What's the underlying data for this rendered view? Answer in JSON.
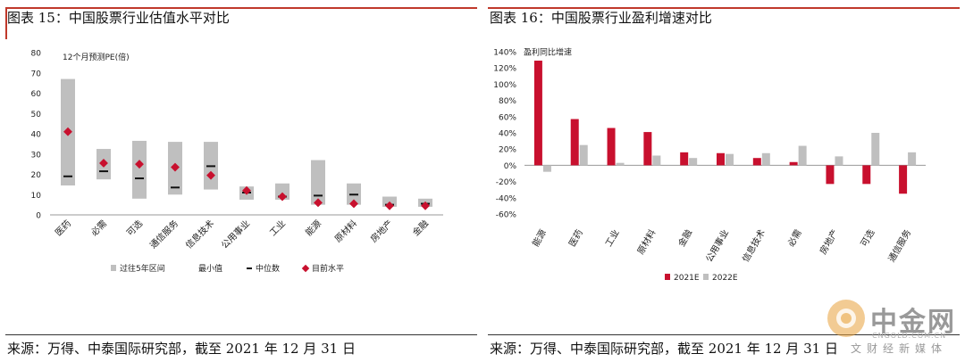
{
  "left": {
    "title": "图表 15：中国股票行业估值水平对比",
    "source": "来源：万得、中泰国际研究部，截至 2021 年 12 月 31 日"
  },
  "right": {
    "title": "图表 16：中国股票行业盈利增速对比",
    "source": "来源：万得、中泰国际研究部，截至 2021 年 12 月 31 日"
  },
  "watermark": {
    "cn": "中金网",
    "en": "CNGOLD.COM.CN",
    "sub": "文财经新媒体"
  },
  "colors": {
    "accent": "#c0392b",
    "red": "#c8102e",
    "gray": "#bfbfbf",
    "dark": "#111111"
  },
  "chart_data": [
    {
      "type": "box-range",
      "ylabel": "12个月预测PE(倍)",
      "ylim": [
        0,
        80
      ],
      "yticks": [
        "0",
        "10",
        "20",
        "30",
        "40",
        "50",
        "60",
        "70",
        "80"
      ],
      "categories": [
        "医药",
        "必需",
        "可选",
        "通信服务",
        "信息技术",
        "公用事业",
        "工业",
        "能源",
        "原材料",
        "房地产",
        "金融"
      ],
      "range_low": [
        14.5,
        17.5,
        8,
        10,
        12.5,
        7.5,
        7.5,
        5,
        5,
        4,
        4
      ],
      "range_high": [
        67,
        32.5,
        36.5,
        36,
        36,
        14,
        15.5,
        27,
        15.5,
        9,
        8
      ],
      "median": [
        19,
        21.5,
        18,
        13.5,
        24,
        11,
        9,
        9.5,
        10,
        5,
        5.5
      ],
      "current": [
        41,
        25.5,
        25,
        23.5,
        19.5,
        12,
        9,
        6,
        5.5,
        4.5,
        4.5
      ],
      "legend": [
        "过往5年区间",
        "最小值",
        "中位数",
        "目前水平"
      ],
      "legend_position": "bottom"
    },
    {
      "type": "bar",
      "ylabel": "盈利同比增速",
      "ylim": [
        -60,
        140
      ],
      "yticks": [
        "-60%",
        "-40%",
        "-20%",
        "0%",
        "20%",
        "40%",
        "60%",
        "80%",
        "100%",
        "120%",
        "140%"
      ],
      "categories": [
        "能源",
        "医药",
        "工业",
        "原材料",
        "金融",
        "公用事业",
        "信息技术",
        "必需",
        "房地产",
        "可选",
        "通信服务"
      ],
      "series": [
        {
          "name": "2021E",
          "values": [
            129,
            57,
            46,
            41,
            16,
            15,
            9,
            4,
            -23,
            -23,
            -35
          ]
        },
        {
          "name": "2022E",
          "values": [
            -8,
            25,
            3,
            12,
            9,
            14,
            15,
            24,
            11,
            40,
            16
          ]
        }
      ],
      "legend_position": "bottom"
    }
  ]
}
